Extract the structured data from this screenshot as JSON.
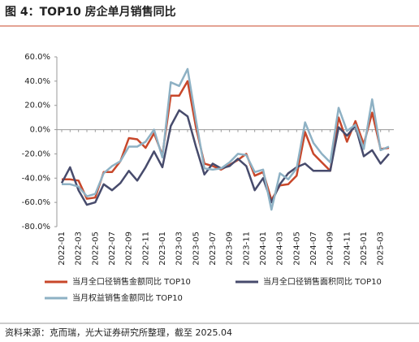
{
  "chart_data": {
    "type": "line",
    "title": "图 4：TOP10 房企单月销售同比",
    "source": "资料来源：克而瑞，光大证券研究所整理，截至 2025.04",
    "categories": [
      "2022-01",
      null,
      "2022-03",
      null,
      "2022-05",
      null,
      "2022-07",
      null,
      "2022-09",
      null,
      "2022-11",
      null,
      "2023-01",
      null,
      "2023-03",
      null,
      "2023-05",
      null,
      "2023-07",
      null,
      "2023-09",
      null,
      "2023-11",
      null,
      "2024-01",
      null,
      "2024-03",
      null,
      "2024-05",
      null,
      "2024-07",
      null,
      "2024-09",
      null,
      "2024-11",
      null,
      "2025-01",
      null,
      "2025-03",
      null
    ],
    "series": [
      {
        "name": "当月全口径销售金额同比 TOP10",
        "color": "#c8472a",
        "values": [
          -41,
          -41,
          -42,
          -57,
          -56,
          -35,
          -35,
          -26,
          -7,
          -8,
          -15,
          -3,
          -21,
          28,
          28,
          40,
          2,
          -28,
          -30,
          -33,
          -29,
          -25,
          -20,
          -38,
          -35,
          -58,
          -46,
          -45,
          -38,
          -2,
          -20,
          -27,
          -34,
          10,
          -10,
          7,
          -12,
          14,
          -16,
          -15
        ]
      },
      {
        "name": "当月全口径销售面积同比 TOP10",
        "color": "#474b6c",
        "values": [
          -44,
          -31,
          -50,
          -62,
          -60,
          -45,
          -50,
          -44,
          -34,
          -42,
          -31,
          -18,
          -31,
          3,
          16,
          11,
          -14,
          -37,
          -28,
          -32,
          -30,
          -24,
          -30,
          -50,
          -40,
          -60,
          -45,
          -36,
          -31,
          -28,
          -34,
          -34,
          -34,
          2,
          -5,
          3,
          -22,
          -17,
          -28,
          -20
        ]
      },
      {
        "name": "当月权益销售金额同比 TOP10",
        "color": "#8eb1c4",
        "values": [
          -45,
          -45,
          -47,
          -55,
          -53,
          -36,
          -30,
          -26,
          -14,
          -14,
          -10,
          0,
          -23,
          39,
          36,
          50,
          8,
          -32,
          -33,
          -32,
          -27,
          -20,
          -21,
          -35,
          -33,
          -66,
          -36,
          -41,
          -32,
          6,
          -11,
          -20,
          -27,
          18,
          -1,
          4,
          -16,
          25,
          -17,
          -14
        ]
      }
    ],
    "ylim": [
      -80,
      60
    ],
    "yticks": [
      {
        "value": -80,
        "label": "-80.0%"
      },
      {
        "value": -60,
        "label": "-60.0%"
      },
      {
        "value": -40,
        "label": "-40.0%"
      },
      {
        "value": -20,
        "label": "-20.0%"
      },
      {
        "value": 0,
        "label": "0.0%"
      },
      {
        "value": 20,
        "label": "20.0%"
      },
      {
        "value": 40,
        "label": "40.0%"
      },
      {
        "value": 60,
        "label": "60.0%"
      }
    ],
    "grid": false
  }
}
